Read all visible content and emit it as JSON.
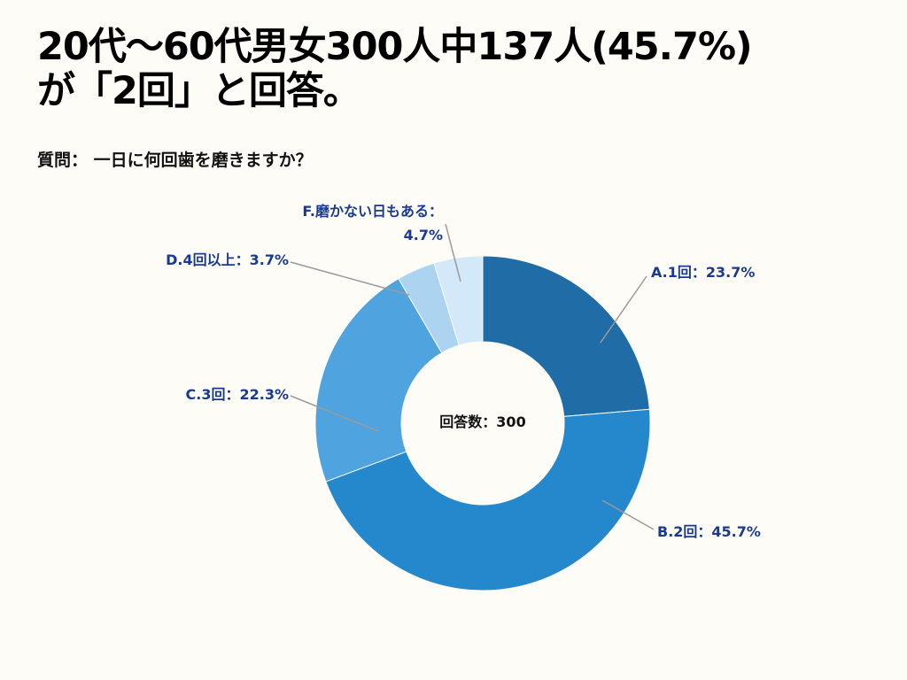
{
  "title_line1": "20代〜60代男女300人中137人(45.7%)",
  "title_line2": "が「2回」と回答。",
  "subtitle": "質問： 一日に何回歯を磨きますか？",
  "chart_data": {
    "type": "pie",
    "donut": true,
    "center_label": "回答数：300",
    "categories": [
      "A.1回",
      "B.2回",
      "C.3回",
      "D.4回以上",
      "F.磨かない日もある"
    ],
    "values": [
      23.7,
      45.7,
      22.3,
      3.7,
      4.7
    ],
    "labels": [
      "A.1回：23.7%",
      "B.2回：45.7%",
      "C.3回：22.3%",
      "D.4回以上：3.7%",
      "F.磨かない日もある："
    ],
    "label_extra": "4.7%",
    "colors": [
      "#1f6ca6",
      "#2587cc",
      "#4fa3df",
      "#acd3ef",
      "#d3e8f8"
    ],
    "start": "top",
    "direction": "clockwise"
  }
}
